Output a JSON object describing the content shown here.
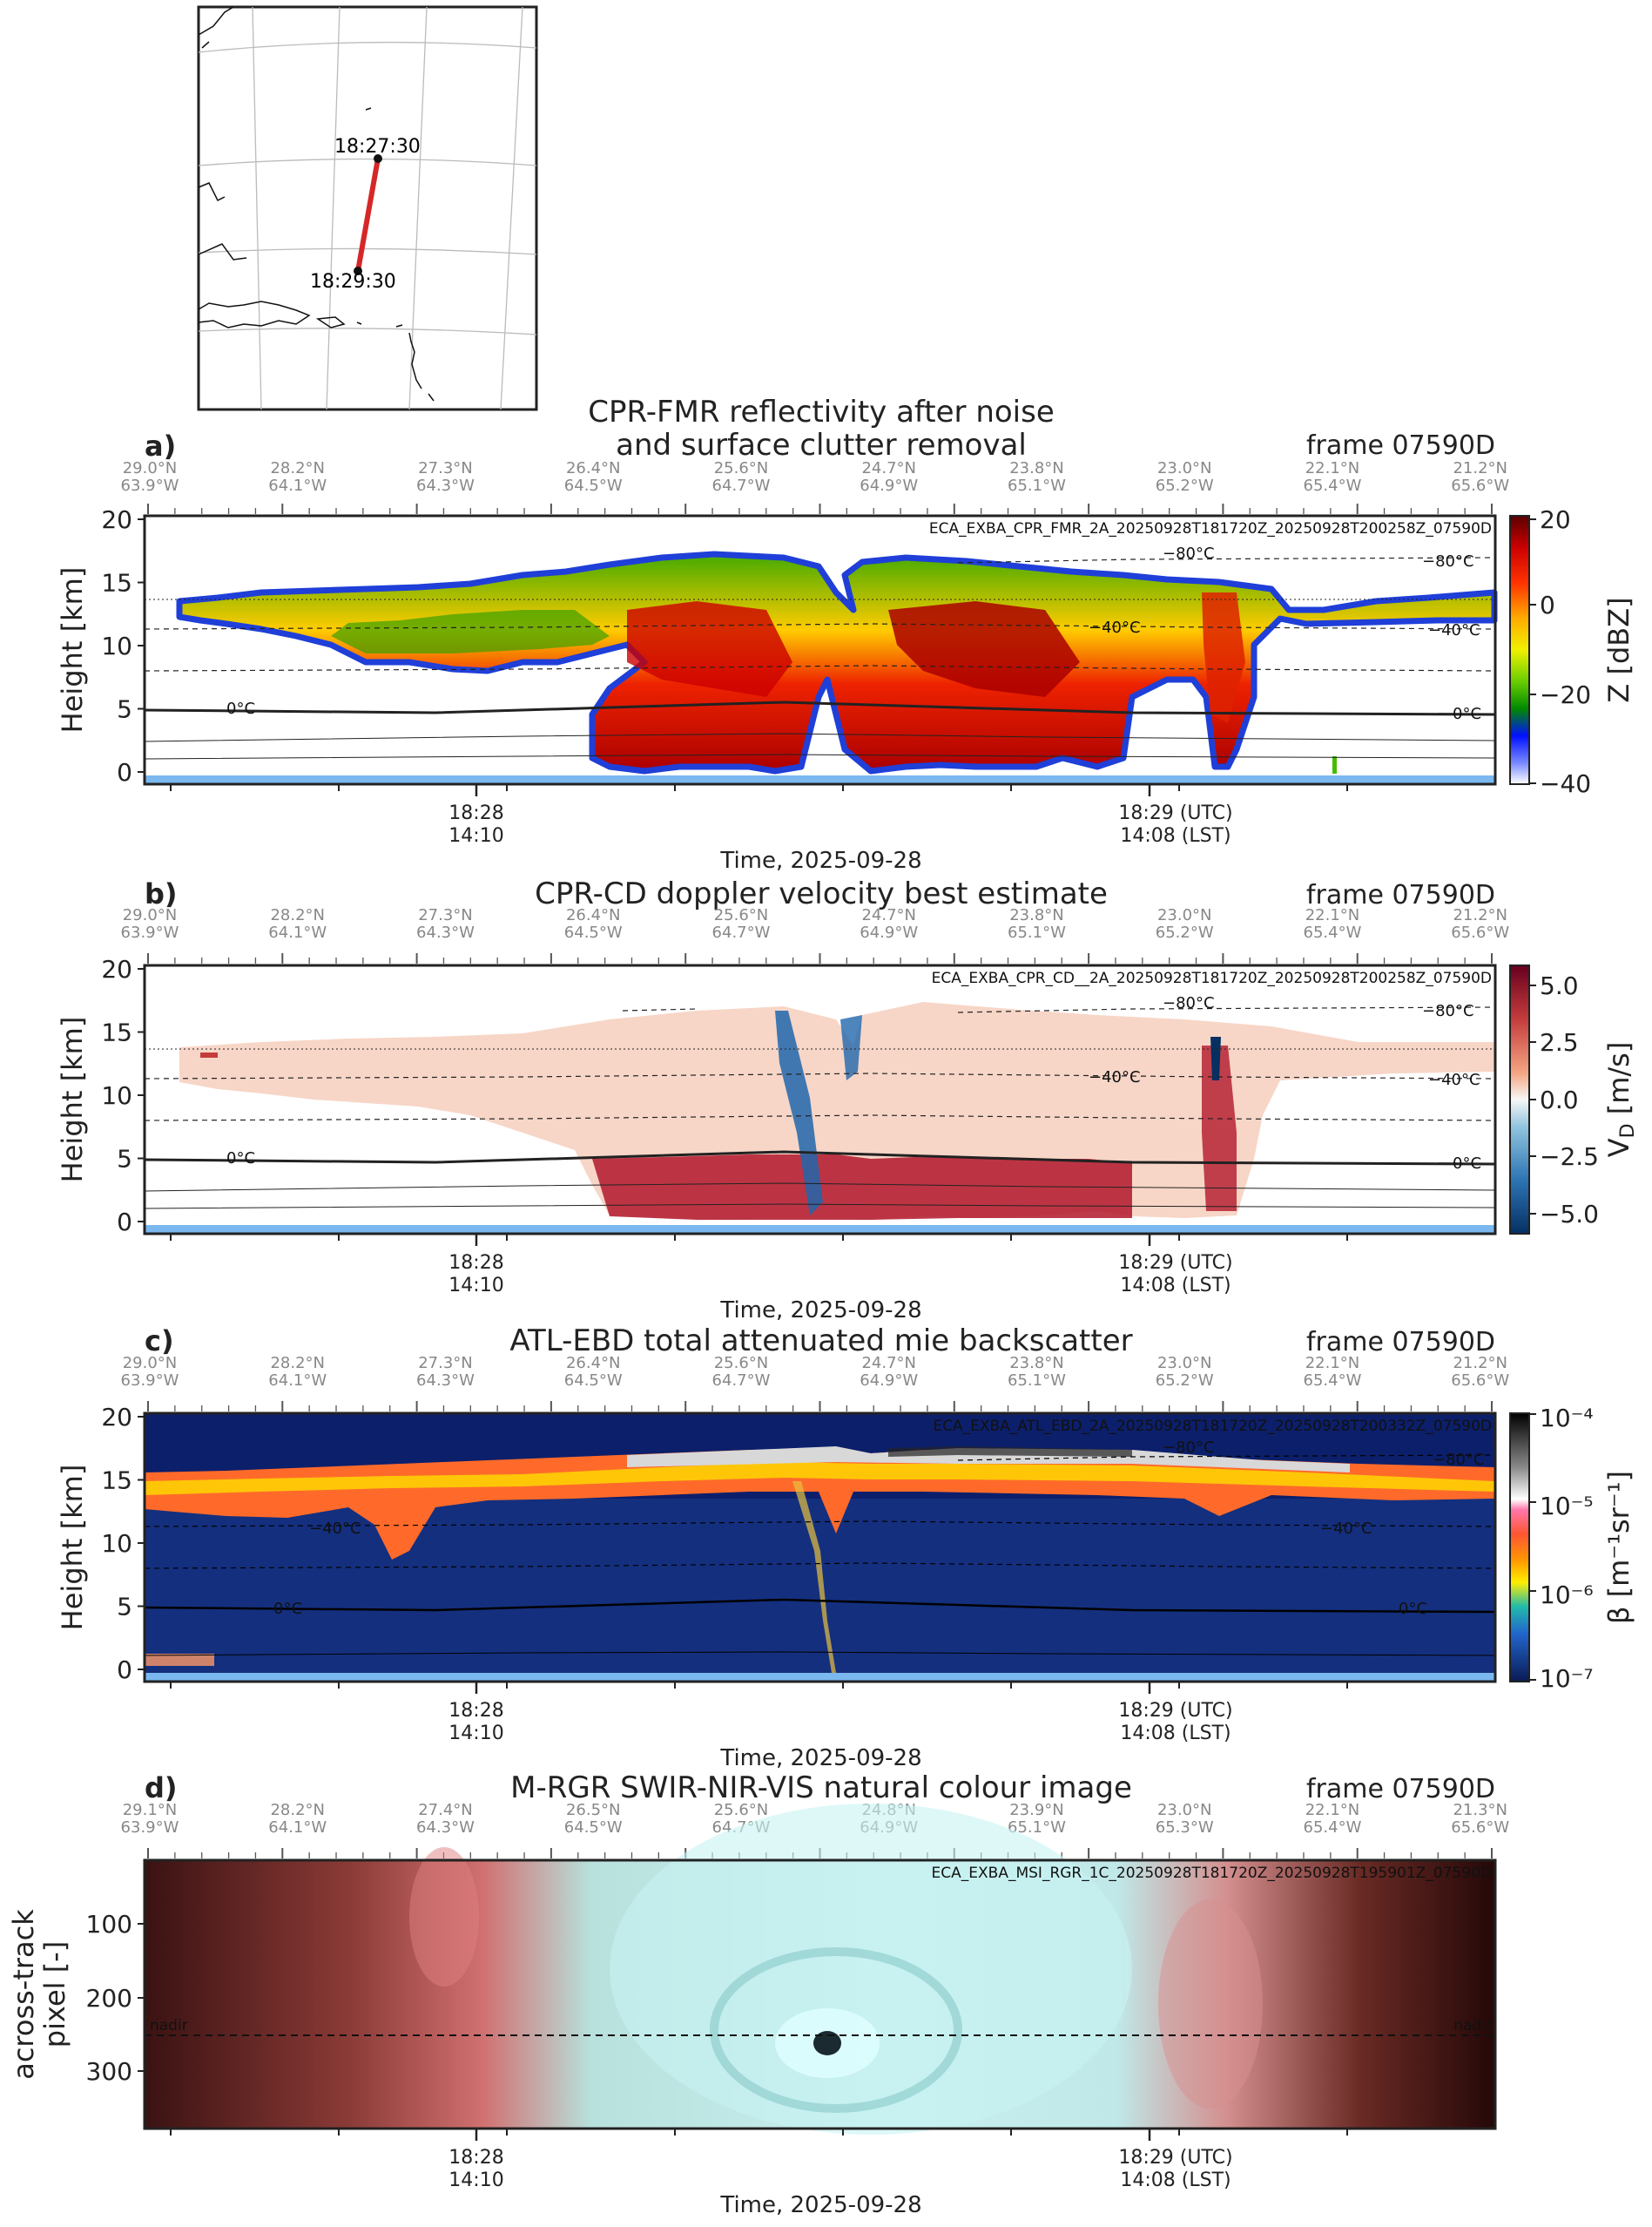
{
  "map": {
    "start_label": "18:27:30",
    "end_label": "18:29:30",
    "track_color": "#d62728"
  },
  "panels": [
    {
      "id": "a",
      "label": "a)",
      "title_line1": "CPR-FMR reflectivity after noise",
      "title_line2": "and surface clutter removal",
      "frame": "frame 07590D",
      "file": "ECA_EXBA_CPR_FMR_2A_20250928T181720Z_20250928T200258Z_07590D",
      "cbar_label": "Z [dBZ]",
      "cbar_ticks": [
        "20",
        "0",
        "−20",
        "−40"
      ],
      "isotherms": [
        "−80°C",
        "−80°C",
        "−40°C",
        "−40°C",
        "0°C",
        "0°C"
      ]
    },
    {
      "id": "b",
      "label": "b)",
      "title_line1": "CPR-CD doppler velocity best estimate",
      "frame": "frame 07590D",
      "file": "ECA_EXBA_CPR_CD__2A_20250928T181720Z_20250928T200258Z_07590D",
      "cbar_label": "V_D [m/s]",
      "cbar_ticks": [
        "5.0",
        "2.5",
        "0.0",
        "−2.5",
        "−5.0"
      ],
      "isotherms": [
        "−80°C",
        "−80°C",
        "−40°C",
        "−40°C",
        "0°C",
        "0°C"
      ]
    },
    {
      "id": "c",
      "label": "c)",
      "title_line1": "ATL-EBD total attenuated mie backscatter",
      "frame": "frame 07590D",
      "file": "ECA_EXBA_ATL_EBD_2A_20250928T181720Z_20250928T200332Z_07590D",
      "cbar_label": "β [m⁻¹sr⁻¹]",
      "cbar_ticks": [
        "10⁻⁴",
        "10⁻⁵",
        "10⁻⁶",
        "10⁻⁷"
      ],
      "isotherms": [
        "−80°C",
        "−80°C",
        "−40°C",
        "−40°C",
        "0°C",
        "0°C"
      ]
    },
    {
      "id": "d",
      "label": "d)",
      "title_line1": "M-RGR SWIR-NIR-VIS natural colour image",
      "frame": "frame 07590D",
      "file": "ECA_EXBA_MSI_RGR_1C_20250928T181720Z_20250928T195901Z_07590D",
      "nadir_label": "nadir"
    }
  ],
  "height_axis": {
    "label": "Height [km]",
    "ticks": [
      "20",
      "15",
      "10",
      "5",
      "0"
    ]
  },
  "pixel_axis": {
    "label_line1": "across-track",
    "label_line2": "pixel [-]",
    "ticks": [
      "100",
      "200",
      "300"
    ]
  },
  "coords_abc": {
    "lat": [
      "29.0°N",
      "28.2°N",
      "27.3°N",
      "26.4°N",
      "25.6°N",
      "24.7°N",
      "23.8°N",
      "23.0°N",
      "22.1°N",
      "21.2°N"
    ],
    "lon": [
      "63.9°W",
      "64.1°W",
      "64.3°W",
      "64.5°W",
      "64.7°W",
      "64.9°W",
      "65.1°W",
      "65.2°W",
      "65.4°W",
      "65.6°W"
    ]
  },
  "coords_d": {
    "lat": [
      "29.1°N",
      "28.2°N",
      "27.4°N",
      "26.5°N",
      "25.6°N",
      "24.8°N",
      "23.9°N",
      "23.0°N",
      "22.1°N",
      "21.3°N"
    ],
    "lon": [
      "63.9°W",
      "64.1°W",
      "64.3°W",
      "64.5°W",
      "64.7°W",
      "64.9°W",
      "65.1°W",
      "65.3°W",
      "65.4°W",
      "65.6°W"
    ]
  },
  "time_axis": {
    "t1_utc": "18:28",
    "t1_lst": "14:10",
    "t2_utc": "18:29 (UTC)",
    "t2_lst": "14:08 (LST)",
    "label": "Time, 2025-09-28"
  },
  "colors": {
    "cloud_blue": "#1f3fd8",
    "surface": "#7ab8ef",
    "navy": "#0c1f6b"
  }
}
